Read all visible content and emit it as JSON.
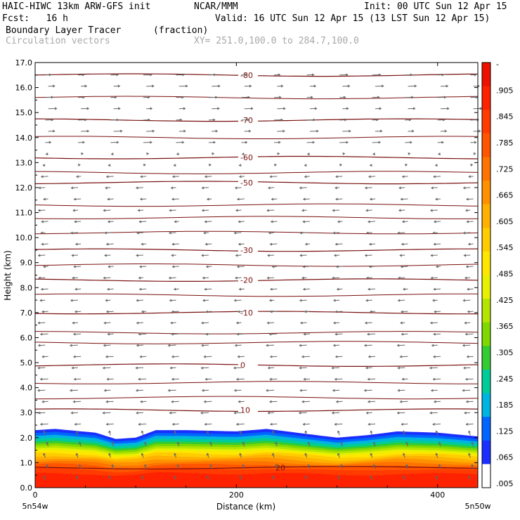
{
  "header": {
    "model": "HAIC-HIWC 13km ARW-GFS init",
    "org": "NCAR/MMM",
    "init": "Init: 00 UTC Sun 12 Apr 15",
    "fcst": "Fcst:   16 h",
    "valid": "Valid: 16 UTC Sun 12 Apr 15 (13 LST Sun 12 Apr 15)",
    "field": "Boundary Layer Tracer",
    "units": "(fraction)",
    "vectors": "Circulation vectors",
    "xy": "XY= 251.0,100.0 to 284.7,100.0"
  },
  "chart_data": {
    "type": "contour-cross-section",
    "xlabel": "Distance (km)",
    "ylabel": "Height (km)",
    "xlim": [
      0,
      440
    ],
    "ylim": [
      0,
      17
    ],
    "x_ticks": [
      "0",
      "200",
      "400"
    ],
    "x_end_labels": [
      "5n54w",
      "5n50w"
    ],
    "y_ticks": [
      "0.0",
      "1.0",
      "2.0",
      "3.0",
      "4.0",
      "5.0",
      "6.0",
      "7.0",
      "8.0",
      "9.0",
      "10.0",
      "11.0",
      "12.0",
      "13.0",
      "14.0",
      "15.0",
      "16.0",
      "17.0"
    ],
    "colorbar": {
      "labels": [
        "-",
        ".905",
        ".845",
        ".785",
        ".725",
        ".665",
        ".605",
        ".545",
        ".485",
        ".425",
        ".365",
        ".305",
        ".245",
        ".185",
        ".125",
        ".065",
        ".005"
      ],
      "colors": [
        "#ee1100",
        "#ff2200",
        "#ff3b00",
        "#ff5500",
        "#ff7300",
        "#ff9100",
        "#ffb000",
        "#ffcc00",
        "#ffe600",
        "#e6f000",
        "#b4e400",
        "#7fd800",
        "#33cc33",
        "#00cc99",
        "#00b4e0",
        "#0066ff",
        "#1a2eff",
        "#ffffff"
      ]
    },
    "temperature_contours": [
      {
        "label": "-80",
        "height_km": 16.5
      },
      {
        "label": "-70",
        "height_km": 14.7
      },
      {
        "label": "-60",
        "height_km": 13.2
      },
      {
        "label": "-50",
        "height_km": 12.2
      },
      {
        "label": "-30",
        "height_km": 9.5
      },
      {
        "label": "-20",
        "height_km": 8.3
      },
      {
        "label": "-10",
        "height_km": 7.0
      },
      {
        "label": "0",
        "height_km": 4.9
      },
      {
        "label": "10",
        "height_km": 3.1
      },
      {
        "label": "20",
        "height_km": 0.8
      }
    ],
    "unlabeled_contour_heights_km": [
      15.6,
      14.0,
      12.6,
      11.3,
      10.8,
      10.2,
      8.9,
      7.7,
      6.2,
      5.8,
      4.2,
      3.6
    ],
    "boundary_layer_top_km": [
      [
        0,
        2.3
      ],
      [
        20,
        2.35
      ],
      [
        60,
        2.2
      ],
      [
        80,
        1.95
      ],
      [
        100,
        2.0
      ],
      [
        120,
        2.3
      ],
      [
        150,
        2.3
      ],
      [
        200,
        2.25
      ],
      [
        230,
        2.35
      ],
      [
        260,
        2.2
      ],
      [
        300,
        2.0
      ],
      [
        330,
        2.1
      ],
      [
        360,
        2.25
      ],
      [
        400,
        2.2
      ],
      [
        440,
        2.05
      ]
    ]
  }
}
